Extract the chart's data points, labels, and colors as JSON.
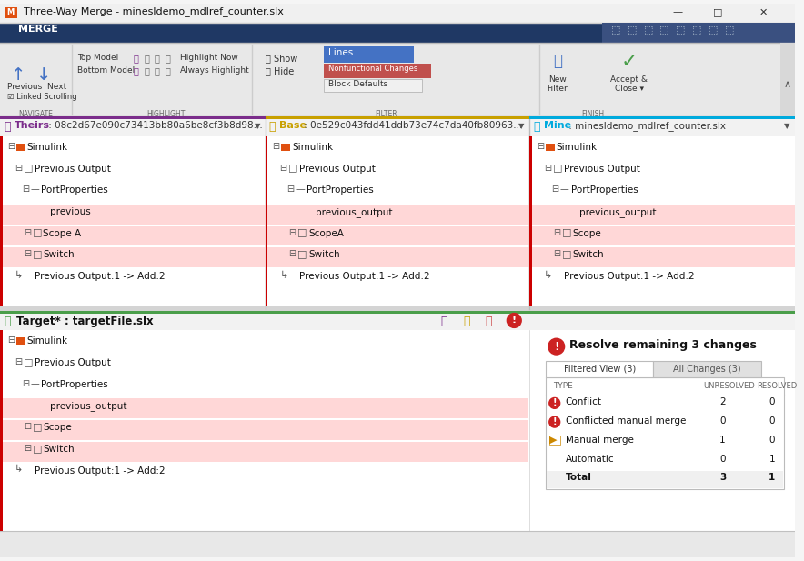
{
  "title": "Three-Way Merge - minesldemo_mdlref_counter.slx",
  "bg_color": "#f5f5f5",
  "titlebar_color": "#f0f0f0",
  "ribbon_color": "#1f3864",
  "ribbon_label": "MERGE",
  "top_pane_bg": "#ffffff",
  "highlight_pink": "#ffd7d7",
  "pane_headers": [
    {
      "label": "Theirs",
      "hash": "08c2d67e090c73413bb80a6be8cf3b8d98...",
      "color": "#7b2d8b"
    },
    {
      "label": "Base",
      "hash": "0e529c043fdd41ddb73e74c7da40fb80963...",
      "color": "#c8a000"
    },
    {
      "label": "Mine",
      "hash": "minesldemo_mdlref_counter.slx",
      "color": "#00aadd"
    }
  ],
  "target_header": "Target* : targetFile.slx",
  "target_color": "#4a9e4a",
  "tree_items_col1": [
    "Simulink",
    "Previous Output",
    "PortProperties",
    "previous",
    "Scope A",
    "Switch",
    "Previous Output:1 -> Add:2"
  ],
  "tree_items_col2": [
    "Simulink",
    "Previous Output",
    "PortProperties",
    "previous_output",
    "ScopeA",
    "Switch",
    "Previous Output:1 -> Add:2"
  ],
  "tree_items_col3": [
    "Simulink",
    "Previous Output",
    "PortProperties",
    "previous_output",
    "Scope",
    "Switch",
    "Previous Output:1 -> Add:2"
  ],
  "tree_items_target": [
    "Simulink",
    "Previous Output",
    "PortProperties",
    "previous_output",
    "Scope",
    "Switch",
    "Previous Output:1 -> Add:2"
  ],
  "highlight_rows_col1": [
    3,
    4,
    5
  ],
  "highlight_rows_col2": [
    3,
    4,
    5
  ],
  "highlight_rows_col3": [
    3,
    4,
    5
  ],
  "highlight_rows_target": [
    3,
    4,
    5
  ],
  "resolve_title": "Resolve remaining 3 changes",
  "tab1": "Filtered View (3)",
  "tab2": "All Changes (3)",
  "table_headers": [
    "TYPE",
    "UNRESOLVED",
    "RESOLVED"
  ],
  "table_rows": [
    {
      "icon": "conflict",
      "type": "Conflict",
      "unresolved": "2",
      "resolved": "0"
    },
    {
      "icon": "conflict_manual",
      "type": "Conflicted manual merge",
      "unresolved": "0",
      "resolved": "0"
    },
    {
      "icon": "manual",
      "type": "Manual merge",
      "unresolved": "1",
      "resolved": "0"
    },
    {
      "icon": "none",
      "type": "Automatic",
      "unresolved": "0",
      "resolved": "1"
    },
    {
      "icon": "none",
      "type": "Total",
      "unresolved": "3",
      "resolved": "1",
      "bold": true
    }
  ],
  "separator_color": "#c0c0c0",
  "red_line_color": "#cc0000",
  "green_line_color": "#4a9e4a"
}
